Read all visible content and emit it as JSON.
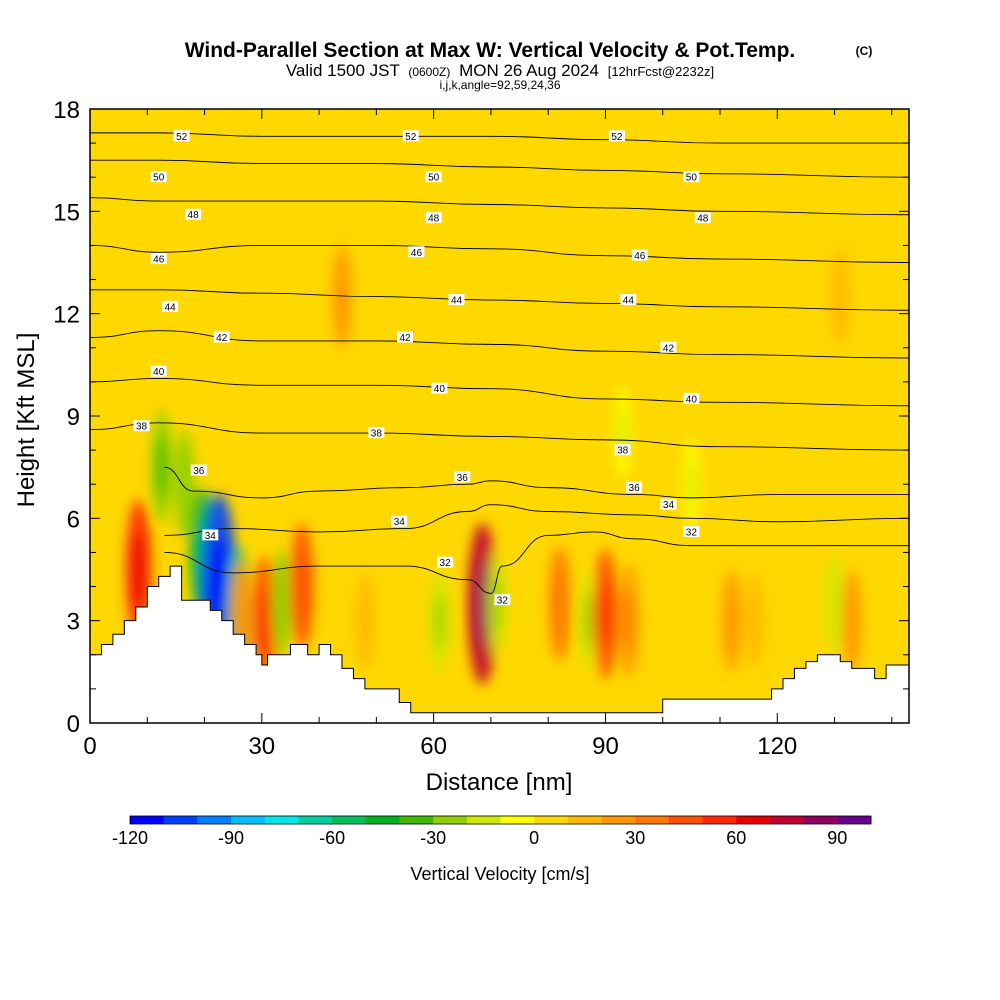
{
  "title": {
    "main": "Wind-Parallel Section at Max W: Vertical Velocity & Pot.Temp.",
    "copyright": "(C)",
    "valid_prefix": "Valid 1500 JST",
    "valid_utc": "(0600Z)",
    "valid_date": "MON 26 Aug 2024",
    "forecast": "[12hrFcst@2232z]",
    "indices": "i,j,k,angle=92,59,24,36"
  },
  "chart_data": {
    "type": "heatmap",
    "xlabel": "Distance [nm]",
    "ylabel": "Height [Kft MSL]",
    "xlim": [
      0,
      143
    ],
    "ylim": [
      0,
      18
    ],
    "x_ticks": [
      0,
      30,
      60,
      90,
      120
    ],
    "y_ticks": [
      0,
      3,
      6,
      9,
      12,
      15,
      18
    ],
    "colorbar": {
      "label": "Vertical Velocity [cm/s]",
      "tick_values": [
        -120,
        -90,
        -60,
        -30,
        0,
        30,
        60,
        90
      ],
      "range": [
        -120,
        100
      ],
      "colors": [
        "#0000ff",
        "#0040ff",
        "#0080ff",
        "#00c0ff",
        "#00e8e8",
        "#00d0a0",
        "#00c060",
        "#00b020",
        "#40b800",
        "#90d000",
        "#d0e800",
        "#ffff00",
        "#ffd800",
        "#ffb800",
        "#ff9800",
        "#ff7800",
        "#ff5000",
        "#ff2800",
        "#e80000",
        "#c00030",
        "#900060",
        "#6a0090"
      ]
    },
    "terrain_profile": [
      [
        0,
        2
      ],
      [
        2,
        2
      ],
      [
        2,
        2.3
      ],
      [
        4,
        2.3
      ],
      [
        4,
        2.6
      ],
      [
        6,
        2.6
      ],
      [
        6,
        3
      ],
      [
        8,
        3
      ],
      [
        8,
        3.4
      ],
      [
        10,
        3.4
      ],
      [
        10,
        4
      ],
      [
        12,
        4
      ],
      [
        12,
        4.3
      ],
      [
        14,
        4.3
      ],
      [
        14,
        4.6
      ],
      [
        16,
        4.6
      ],
      [
        16,
        3.6
      ],
      [
        21,
        3.6
      ],
      [
        21,
        3.3
      ],
      [
        23,
        3.3
      ],
      [
        23,
        3
      ],
      [
        25,
        3
      ],
      [
        25,
        2.6
      ],
      [
        27,
        2.6
      ],
      [
        27,
        2.3
      ],
      [
        29,
        2.3
      ],
      [
        29,
        2
      ],
      [
        30,
        2
      ],
      [
        30,
        1.7
      ],
      [
        31,
        1.7
      ],
      [
        31,
        2
      ],
      [
        35,
        2
      ],
      [
        35,
        2.3
      ],
      [
        38,
        2.3
      ],
      [
        38,
        2
      ],
      [
        40,
        2
      ],
      [
        40,
        2.3
      ],
      [
        42,
        2.3
      ],
      [
        42,
        2
      ],
      [
        44,
        2
      ],
      [
        44,
        1.6
      ],
      [
        46,
        1.6
      ],
      [
        46,
        1.3
      ],
      [
        48,
        1.3
      ],
      [
        48,
        1
      ],
      [
        54,
        1
      ],
      [
        54,
        0.6
      ],
      [
        56,
        0.6
      ],
      [
        56,
        0.3
      ],
      [
        100,
        0.3
      ],
      [
        100,
        0.7
      ],
      [
        119,
        0.7
      ],
      [
        119,
        1
      ],
      [
        121,
        1
      ],
      [
        121,
        1.3
      ],
      [
        123,
        1.3
      ],
      [
        123,
        1.6
      ],
      [
        125,
        1.6
      ],
      [
        125,
        1.8
      ],
      [
        127,
        1.8
      ],
      [
        127,
        2
      ],
      [
        131,
        2
      ],
      [
        131,
        1.8
      ],
      [
        133,
        1.8
      ],
      [
        133,
        1.6
      ],
      [
        137,
        1.6
      ],
      [
        137,
        1.3
      ],
      [
        139,
        1.3
      ],
      [
        139,
        1.7
      ],
      [
        143,
        1.7
      ]
    ],
    "velocity_features": [
      {
        "x": 8.5,
        "y": 4.5,
        "value": 55
      },
      {
        "x": 12.5,
        "y": 7.5,
        "value": -30
      },
      {
        "x": 16.5,
        "y": 7.0,
        "value": -25
      },
      {
        "x": 19.5,
        "y": 5.0,
        "value": -45
      },
      {
        "x": 22.5,
        "y": 3.8,
        "value": -110
      },
      {
        "x": 26,
        "y": 3.0,
        "value": -60
      },
      {
        "x": 26.5,
        "y": 3.2,
        "value": 25
      },
      {
        "x": 30.5,
        "y": 3.0,
        "value": 45
      },
      {
        "x": 33.5,
        "y": 3.5,
        "value": -25
      },
      {
        "x": 37,
        "y": 4.0,
        "value": 42
      },
      {
        "x": 44,
        "y": 12.5,
        "value": 20
      },
      {
        "x": 48,
        "y": 3.0,
        "value": 15
      },
      {
        "x": 61,
        "y": 3.0,
        "value": -20
      },
      {
        "x": 68.5,
        "y": 3.5,
        "value": 75
      },
      {
        "x": 71,
        "y": 3.5,
        "value": -20
      },
      {
        "x": 82,
        "y": 3.5,
        "value": 32
      },
      {
        "x": 87,
        "y": 3.0,
        "value": -18
      },
      {
        "x": 90,
        "y": 3.2,
        "value": 45
      },
      {
        "x": 94,
        "y": 3.0,
        "value": 30
      },
      {
        "x": 112,
        "y": 3.0,
        "value": 20
      },
      {
        "x": 116,
        "y": 3.0,
        "value": 15
      },
      {
        "x": 130,
        "y": 3.5,
        "value": -15
      },
      {
        "x": 133,
        "y": 3.0,
        "value": 20
      },
      {
        "x": 105,
        "y": 7.0,
        "value": -10
      },
      {
        "x": 131,
        "y": 12.5,
        "value": 15
      },
      {
        "x": 93,
        "y": 8.5,
        "value": -10
      }
    ],
    "isentropes": [
      {
        "label": "32",
        "points": [
          [
            13,
            5.0
          ],
          [
            25,
            4.4
          ],
          [
            40,
            4.6
          ],
          [
            55,
            4.6
          ],
          [
            66,
            4.2
          ],
          [
            70,
            3.8
          ],
          [
            72,
            4.6
          ],
          [
            80,
            5.5
          ],
          [
            88,
            5.6
          ],
          [
            95,
            5.4
          ],
          [
            105,
            5.2
          ],
          [
            120,
            5.2
          ],
          [
            143,
            5.2
          ]
        ]
      },
      {
        "label": "34",
        "points": [
          [
            13,
            5.5
          ],
          [
            25,
            5.7
          ],
          [
            40,
            5.6
          ],
          [
            55,
            5.7
          ],
          [
            66,
            6.2
          ],
          [
            70,
            6.4
          ],
          [
            80,
            6.2
          ],
          [
            95,
            6.1
          ],
          [
            105,
            6.0
          ],
          [
            120,
            5.9
          ],
          [
            143,
            6.0
          ]
        ]
      },
      {
        "label": "36",
        "points": [
          [
            13,
            7.5
          ],
          [
            18,
            6.8
          ],
          [
            30,
            6.6
          ],
          [
            40,
            6.8
          ],
          [
            55,
            6.9
          ],
          [
            66,
            7.0
          ],
          [
            70,
            7.1
          ],
          [
            80,
            6.9
          ],
          [
            95,
            6.7
          ],
          [
            105,
            6.6
          ],
          [
            120,
            6.7
          ],
          [
            143,
            6.7
          ]
        ]
      },
      {
        "label": "38",
        "points": [
          [
            0,
            8.6
          ],
          [
            12,
            8.8
          ],
          [
            30,
            8.5
          ],
          [
            50,
            8.5
          ],
          [
            70,
            8.4
          ],
          [
            90,
            8.3
          ],
          [
            110,
            8.1
          ],
          [
            143,
            8.0
          ]
        ]
      },
      {
        "label": "40",
        "points": [
          [
            0,
            10.0
          ],
          [
            12,
            10.1
          ],
          [
            30,
            9.9
          ],
          [
            50,
            9.9
          ],
          [
            70,
            9.8
          ],
          [
            90,
            9.5
          ],
          [
            110,
            9.4
          ],
          [
            143,
            9.3
          ]
        ]
      },
      {
        "label": "42",
        "points": [
          [
            0,
            11.3
          ],
          [
            12,
            11.5
          ],
          [
            30,
            11.2
          ],
          [
            50,
            11.2
          ],
          [
            70,
            11.1
          ],
          [
            90,
            10.9
          ],
          [
            110,
            10.8
          ],
          [
            143,
            10.7
          ]
        ]
      },
      {
        "label": "44",
        "points": [
          [
            0,
            12.7
          ],
          [
            12,
            12.7
          ],
          [
            30,
            12.6
          ],
          [
            50,
            12.5
          ],
          [
            70,
            12.4
          ],
          [
            90,
            12.3
          ],
          [
            110,
            12.2
          ],
          [
            143,
            12.1
          ]
        ]
      },
      {
        "label": "46",
        "points": [
          [
            0,
            14.0
          ],
          [
            12,
            13.8
          ],
          [
            30,
            14.0
          ],
          [
            50,
            14.0
          ],
          [
            70,
            13.9
          ],
          [
            90,
            13.7
          ],
          [
            110,
            13.6
          ],
          [
            143,
            13.5
          ]
        ]
      },
      {
        "label": "48",
        "points": [
          [
            0,
            15.4
          ],
          [
            12,
            15.3
          ],
          [
            30,
            15.3
          ],
          [
            50,
            15.3
          ],
          [
            70,
            15.2
          ],
          [
            90,
            15.1
          ],
          [
            110,
            15.0
          ],
          [
            143,
            14.9
          ]
        ]
      },
      {
        "label": "50",
        "points": [
          [
            0,
            16.5
          ],
          [
            12,
            16.5
          ],
          [
            30,
            16.4
          ],
          [
            50,
            16.4
          ],
          [
            70,
            16.3
          ],
          [
            90,
            16.2
          ],
          [
            110,
            16.1
          ],
          [
            143,
            16.0
          ]
        ]
      },
      {
        "label": "52",
        "points": [
          [
            0,
            17.3
          ],
          [
            12,
            17.3
          ],
          [
            30,
            17.2
          ],
          [
            50,
            17.2
          ],
          [
            70,
            17.2
          ],
          [
            90,
            17.1
          ],
          [
            110,
            17.0
          ],
          [
            143,
            17.0
          ]
        ]
      }
    ],
    "isentrope_labels": [
      {
        "text": "52",
        "x": 16,
        "y": 17.2
      },
      {
        "text": "52",
        "x": 56,
        "y": 17.2
      },
      {
        "text": "52",
        "x": 92,
        "y": 17.2
      },
      {
        "text": "50",
        "x": 12,
        "y": 16.0
      },
      {
        "text": "50",
        "x": 60,
        "y": 16.0
      },
      {
        "text": "50",
        "x": 105,
        "y": 16.0
      },
      {
        "text": "48",
        "x": 18,
        "y": 14.9
      },
      {
        "text": "48",
        "x": 60,
        "y": 14.8
      },
      {
        "text": "48",
        "x": 107,
        "y": 14.8
      },
      {
        "text": "46",
        "x": 12,
        "y": 13.6
      },
      {
        "text": "46",
        "x": 57,
        "y": 13.8
      },
      {
        "text": "46",
        "x": 96,
        "y": 13.7
      },
      {
        "text": "44",
        "x": 14,
        "y": 12.2
      },
      {
        "text": "44",
        "x": 64,
        "y": 12.4
      },
      {
        "text": "44",
        "x": 94,
        "y": 12.4
      },
      {
        "text": "42",
        "x": 23,
        "y": 11.3
      },
      {
        "text": "42",
        "x": 55,
        "y": 11.3
      },
      {
        "text": "42",
        "x": 101,
        "y": 11.0
      },
      {
        "text": "40",
        "x": 12,
        "y": 10.3
      },
      {
        "text": "40",
        "x": 61,
        "y": 9.8
      },
      {
        "text": "40",
        "x": 105,
        "y": 9.5
      },
      {
        "text": "38",
        "x": 9,
        "y": 8.7
      },
      {
        "text": "38",
        "x": 50,
        "y": 8.5
      },
      {
        "text": "38",
        "x": 93,
        "y": 8.0
      },
      {
        "text": "36",
        "x": 19,
        "y": 7.4
      },
      {
        "text": "36",
        "x": 65,
        "y": 7.2
      },
      {
        "text": "36",
        "x": 95,
        "y": 6.9
      },
      {
        "text": "34",
        "x": 21,
        "y": 5.5
      },
      {
        "text": "34",
        "x": 54,
        "y": 5.9
      },
      {
        "text": "34",
        "x": 101,
        "y": 6.4
      },
      {
        "text": "32",
        "x": 62,
        "y": 4.7
      },
      {
        "text": "32",
        "x": 72,
        "y": 3.6
      },
      {
        "text": "32",
        "x": 105,
        "y": 5.6
      }
    ]
  }
}
